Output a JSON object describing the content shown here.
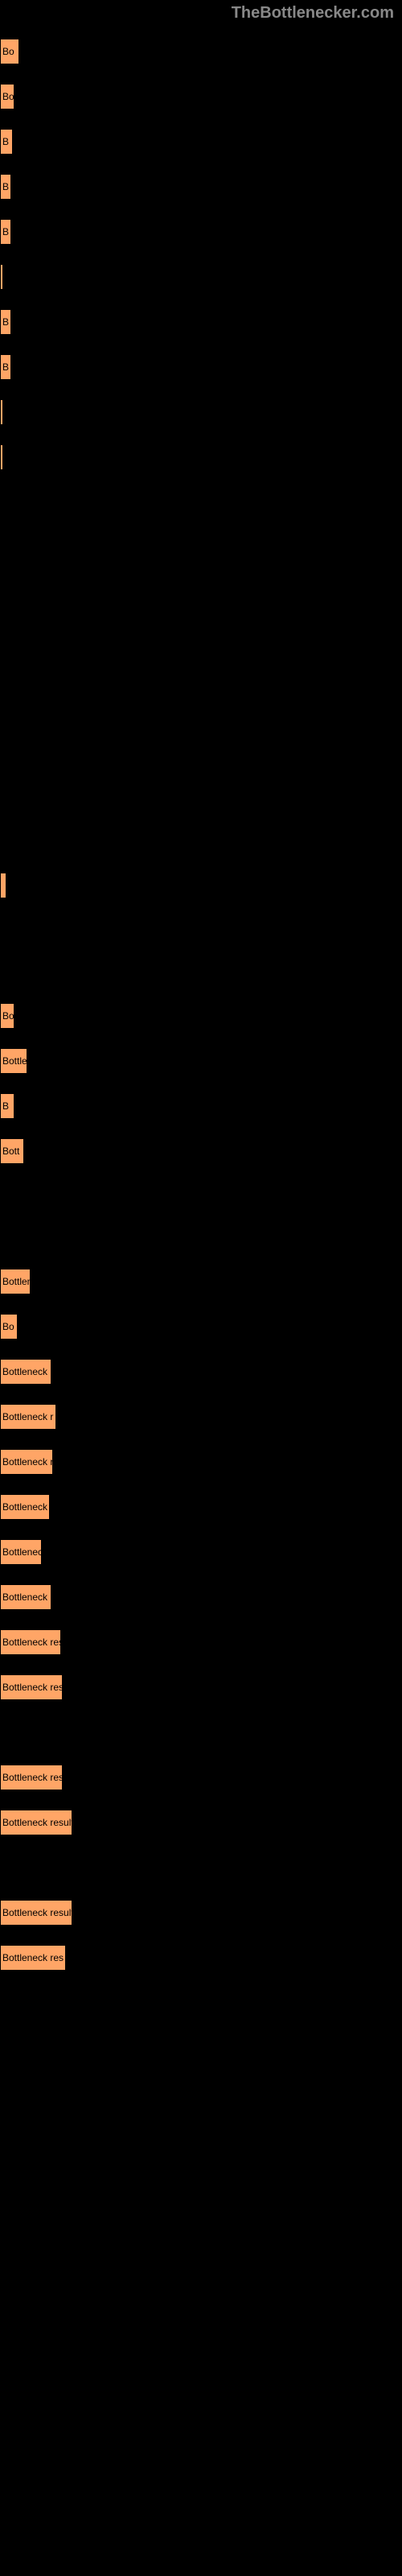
{
  "header": {
    "brand": "TheBottlenecker.com"
  },
  "bars": [
    {
      "width": 24,
      "label": "Bo"
    },
    {
      "width": 18,
      "label": "Bo"
    },
    {
      "width": 16,
      "label": "B"
    },
    {
      "width": 14,
      "label": "B"
    },
    {
      "width": 14,
      "label": "B"
    },
    {
      "width": 4,
      "label": ""
    },
    {
      "width": 14,
      "label": "B"
    },
    {
      "width": 14,
      "label": "B"
    },
    {
      "width": 4,
      "label": ""
    },
    {
      "width": 4,
      "label": ""
    }
  ],
  "bars2": [
    {
      "width": 8,
      "label": ""
    }
  ],
  "bars3": [
    {
      "width": 18,
      "label": "Bo"
    },
    {
      "width": 34,
      "label": "Bottle"
    },
    {
      "width": 18,
      "label": "B"
    },
    {
      "width": 30,
      "label": "Bott"
    }
  ],
  "bars4": [
    {
      "width": 38,
      "label": "Bottlen"
    },
    {
      "width": 22,
      "label": "Bo"
    },
    {
      "width": 64,
      "label": "Bottleneck r"
    },
    {
      "width": 70,
      "label": "Bottleneck r"
    },
    {
      "width": 66,
      "label": "Bottleneck res"
    },
    {
      "width": 62,
      "label": "Bottleneck re"
    },
    {
      "width": 52,
      "label": "Bottleneck"
    },
    {
      "width": 64,
      "label": "Bottleneck res"
    },
    {
      "width": 76,
      "label": "Bottleneck result"
    },
    {
      "width": 78,
      "label": "Bottleneck result"
    },
    {
      "width": 78,
      "label": "Bottleneck result"
    },
    {
      "width": 90,
      "label": "Bottleneck result"
    },
    {
      "width": 90,
      "label": "Bottleneck result"
    },
    {
      "width": 82,
      "label": "Bottleneck res"
    }
  ],
  "colors": {
    "background": "#000000",
    "bar_fill": "#ffa566",
    "bar_border": "#000000",
    "header_text": "#888888",
    "label_text": "#000000"
  }
}
